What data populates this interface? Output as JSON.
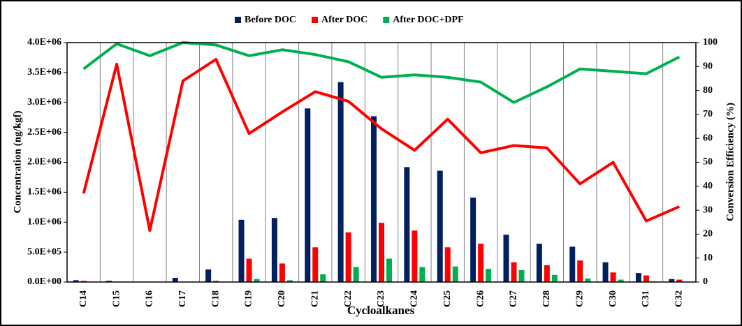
{
  "chart_data": {
    "type": "bar_line",
    "x_label": "Cycloalkanes",
    "y_label": "Concentration (ng/kgf)",
    "y2_label": "Conversion Efficiency (%)",
    "categories": [
      "C14",
      "C15",
      "C16",
      "C17",
      "C18",
      "C19",
      "C20",
      "C21",
      "C22",
      "C23",
      "C24",
      "C25",
      "C26",
      "C27",
      "C28",
      "C29",
      "C30",
      "C31",
      "C32"
    ],
    "series": [
      {
        "name": "Before DOC",
        "type": "bar",
        "color": "#002060",
        "values": [
          30000,
          20000,
          0,
          70000,
          210000,
          1040000,
          1070000,
          2900000,
          3340000,
          2770000,
          1920000,
          1860000,
          1410000,
          790000,
          640000,
          590000,
          330000,
          150000,
          50000
        ]
      },
      {
        "name": "After DOC",
        "type": "bar",
        "color": "#ff0000",
        "values": [
          20000,
          0,
          0,
          0,
          20000,
          390000,
          310000,
          580000,
          830000,
          990000,
          860000,
          580000,
          640000,
          330000,
          280000,
          360000,
          160000,
          110000,
          40000
        ]
      },
      {
        "name": "After DOC+DPF",
        "type": "bar",
        "color": "#00b050",
        "values": [
          0,
          0,
          0,
          0,
          0,
          50000,
          30000,
          130000,
          250000,
          390000,
          250000,
          260000,
          220000,
          200000,
          120000,
          60000,
          40000,
          10000,
          0
        ]
      },
      {
        "type": "line",
        "axis": "y2",
        "color": "#ff0000",
        "values": [
          37,
          91,
          21.5,
          84,
          93,
          62,
          71,
          79.5,
          75.5,
          64,
          55,
          68,
          54,
          57,
          56,
          41,
          50,
          25.5,
          31.5
        ]
      },
      {
        "type": "line",
        "axis": "y2",
        "color": "#00b050",
        "values": [
          89,
          99.5,
          94.5,
          100,
          99,
          94.5,
          97,
          95,
          92,
          85.5,
          86.5,
          85.5,
          83.5,
          75,
          81.5,
          89,
          88,
          87,
          94
        ]
      }
    ],
    "ylim": [
      0,
      4000000
    ],
    "yticks": [
      {
        "value": 0,
        "label": "0.0E+00"
      },
      {
        "value": 500000,
        "label": "5.0E+05"
      },
      {
        "value": 1000000,
        "label": "1.0E+06"
      },
      {
        "value": 1500000,
        "label": "1.5E+06"
      },
      {
        "value": 2000000,
        "label": "2.0E+06"
      },
      {
        "value": 2500000,
        "label": "2.5E+06"
      },
      {
        "value": 3000000,
        "label": "3.0E+06"
      },
      {
        "value": 3500000,
        "label": "3.5E+06"
      },
      {
        "value": 4000000,
        "label": "4.0E+06"
      }
    ],
    "y2lim": [
      0,
      100
    ],
    "y2ticks": [
      0,
      10,
      20,
      30,
      40,
      50,
      60,
      70,
      80,
      90,
      100
    ],
    "legend": "top",
    "vertical_grid": true
  }
}
